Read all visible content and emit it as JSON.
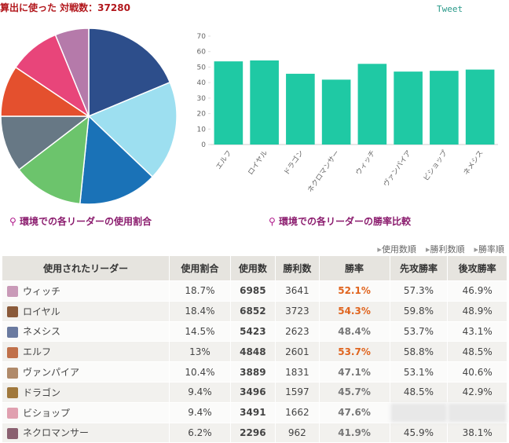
{
  "header": {
    "title": "算出に使った 対戦数：37280",
    "tweet": "Tweet"
  },
  "chart_data": [
    {
      "type": "pie",
      "caption": "環境での各リーダーの使用割合",
      "values": [
        18.7,
        18.4,
        14.5,
        13,
        10.4,
        9.4,
        9.4,
        6.2
      ],
      "colors": [
        "#2d4e8b",
        "#9ddff0",
        "#1a72b7",
        "#6cc46c",
        "#677885",
        "#e4502e",
        "#e8457a",
        "#b57aaa"
      ]
    },
    {
      "type": "bar",
      "caption": "環境での各リーダーの勝率比較",
      "categories": [
        "エルフ",
        "ロイヤル",
        "ドラゴン",
        "ネクロマンサー",
        "ウィッチ",
        "ヴァンパイア",
        "ビショップ",
        "ネメシス"
      ],
      "values": [
        53.7,
        54.3,
        45.7,
        41.9,
        52.1,
        47.1,
        47.6,
        48.4
      ],
      "color": "#1fc9a4",
      "ylim": [
        0,
        70
      ],
      "yticks": [
        0,
        10,
        20,
        30,
        40,
        50,
        60,
        70
      ]
    }
  ],
  "sort_links": [
    "使用数順",
    "勝利数順",
    "勝率順"
  ],
  "table": {
    "header": [
      "使用されたリーダー",
      "使用割合",
      "使用数",
      "勝利数",
      "勝率",
      "先攻勝率",
      "後攻勝率"
    ],
    "rows": [
      [
        "ウィッチ",
        "18.7%",
        "6985",
        "3641",
        "52.1%",
        "57.3%",
        "46.9%"
      ],
      [
        "ロイヤル",
        "18.4%",
        "6852",
        "3723",
        "54.3%",
        "59.8%",
        "48.9%"
      ],
      [
        "ネメシス",
        "14.5%",
        "5423",
        "2623",
        "48.4%",
        "53.7%",
        "43.1%"
      ],
      [
        "エルフ",
        "13%",
        "4848",
        "2601",
        "53.7%",
        "58.8%",
        "48.5%"
      ],
      [
        "ヴァンパイア",
        "10.4%",
        "3889",
        "1831",
        "47.1%",
        "53.1%",
        "40.6%"
      ],
      [
        "ドラゴン",
        "9.4%",
        "3496",
        "1597",
        "45.7%",
        "48.5%",
        "42.9%"
      ],
      [
        "ビショップ",
        "9.4%",
        "3491",
        "1662",
        "47.6%",
        null,
        null
      ],
      [
        "ネクロマンサー",
        "6.2%",
        "2296",
        "962",
        "41.9%",
        "45.9%",
        "38.1%"
      ]
    ]
  }
}
